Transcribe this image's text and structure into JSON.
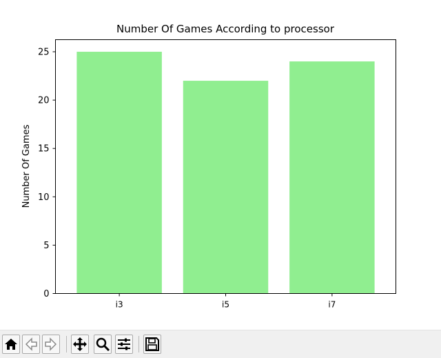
{
  "chart_data": {
    "type": "bar",
    "title": "Number Of Games According to processor",
    "xlabel": "",
    "ylabel": "Number Of Games",
    "categories": [
      "i3",
      "i5",
      "i7"
    ],
    "values": [
      25,
      22,
      24
    ],
    "ylim": [
      0,
      26.25
    ],
    "yticks": [
      0,
      5,
      10,
      15,
      20,
      25
    ],
    "bar_color": "#90ee90",
    "grid": false,
    "legend": "none"
  },
  "toolbar": {
    "buttons": [
      {
        "name": "home-button",
        "icon": "home-icon"
      },
      {
        "name": "back-button",
        "icon": "arrow-left-icon"
      },
      {
        "name": "forward-button",
        "icon": "arrow-right-icon"
      },
      {
        "name": "pan-button",
        "icon": "move-icon"
      },
      {
        "name": "zoom-button",
        "icon": "magnifier-icon"
      },
      {
        "name": "configure-subplots-button",
        "icon": "sliders-icon"
      },
      {
        "name": "save-button",
        "icon": "floppy-disk-icon"
      }
    ]
  }
}
